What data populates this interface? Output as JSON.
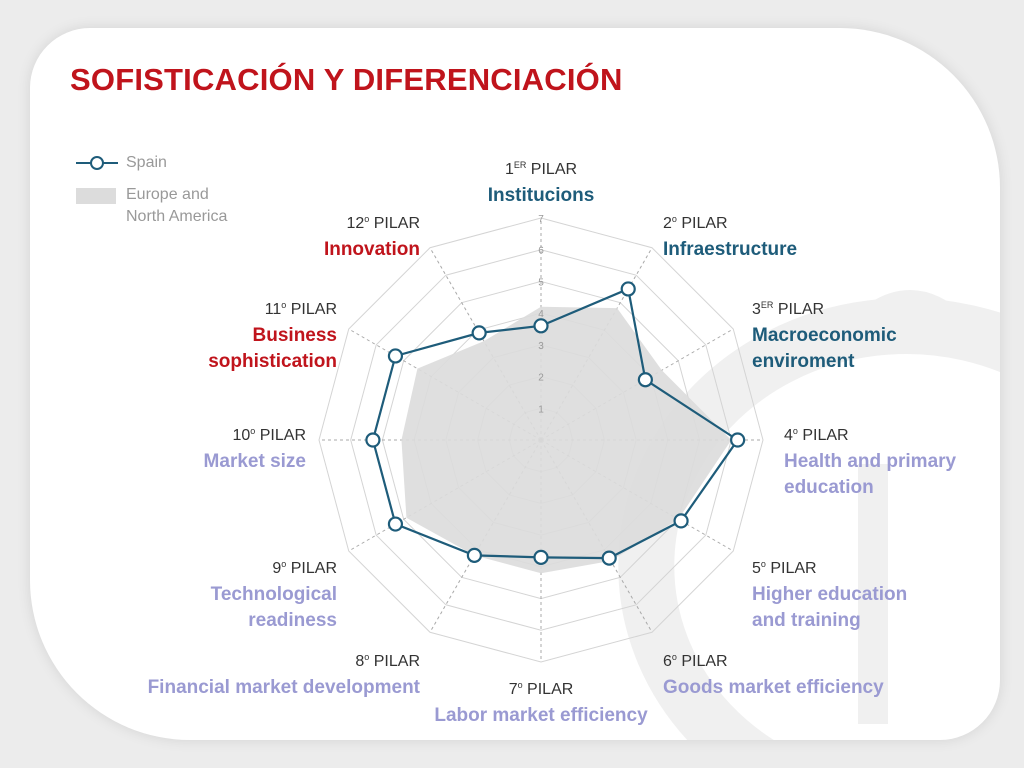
{
  "title": "SOFISTICACIÓN Y DIFERENCIACIÓN",
  "legend": {
    "spain": "Spain",
    "region_line1": "Europe and",
    "region_line2": "North America"
  },
  "colors": {
    "title": "#c0141c",
    "spain_line": "#1e5c7a",
    "region_fill": "#dcdcdc",
    "basic_requirements": "#1e5c7a",
    "efficiency_enhancers": "#9a9ad2",
    "innovation_factors": "#c0141c"
  },
  "axes": [
    {
      "num": "1",
      "sup": "ER",
      "suffix": "PILAR",
      "name1": "Institucions",
      "name2": ""
    },
    {
      "num": "2",
      "sup": "o",
      "suffix": "PILAR",
      "name1": "Infraestructure",
      "name2": ""
    },
    {
      "num": "3",
      "sup": "ER",
      "suffix": "PILAR",
      "name1": "Macroeconomic",
      "name2": "enviroment"
    },
    {
      "num": "4",
      "sup": "o",
      "suffix": "PILAR",
      "name1": "Health and primary",
      "name2": "education"
    },
    {
      "num": "5",
      "sup": "o",
      "suffix": "PILAR",
      "name1": "Higher education",
      "name2": "and training"
    },
    {
      "num": "6",
      "sup": "o",
      "suffix": "PILAR",
      "name1": "Goods market efficiency",
      "name2": ""
    },
    {
      "num": "7",
      "sup": "o",
      "suffix": "PILAR",
      "name1": "Labor market efficiency",
      "name2": ""
    },
    {
      "num": "8",
      "sup": "o",
      "suffix": "PILAR",
      "name1": "Financial market development",
      "name2": ""
    },
    {
      "num": "9",
      "sup": "o",
      "suffix": "PILAR",
      "name1": "Technological",
      "name2": "readiness"
    },
    {
      "num": "10",
      "sup": "o",
      "suffix": "PILAR",
      "name1": "Market size",
      "name2": ""
    },
    {
      "num": "11",
      "sup": "o",
      "suffix": "PILAR",
      "name1": "Business",
      "name2": "sophistication"
    },
    {
      "num": "12",
      "sup": "o",
      "suffix": "PILAR",
      "name1": "Innovation",
      "name2": ""
    }
  ],
  "chart_data": {
    "type": "radar",
    "categories": [
      "Institucions",
      "Infraestructure",
      "Macroeconomic enviroment",
      "Health and primary education",
      "Higher education and training",
      "Goods market efficiency",
      "Labor market efficiency",
      "Financial market development",
      "Technological readiness",
      "Market size",
      "Business sophistication",
      "Innovation"
    ],
    "rlim": [
      0,
      7
    ],
    "ticks": [
      "1",
      "2",
      "3",
      "4",
      "5",
      "6",
      "7"
    ],
    "series": [
      {
        "name": "Spain",
        "values": [
          3.6,
          5.5,
          3.8,
          6.2,
          5.1,
          4.3,
          3.7,
          4.2,
          5.3,
          5.3,
          5.3,
          3.9
        ]
      },
      {
        "name": "Europe and North America",
        "values": [
          4.2,
          4.8,
          4.4,
          6.0,
          5.0,
          4.4,
          4.2,
          4.2,
          4.9,
          4.4,
          4.5,
          3.6
        ]
      }
    ]
  }
}
